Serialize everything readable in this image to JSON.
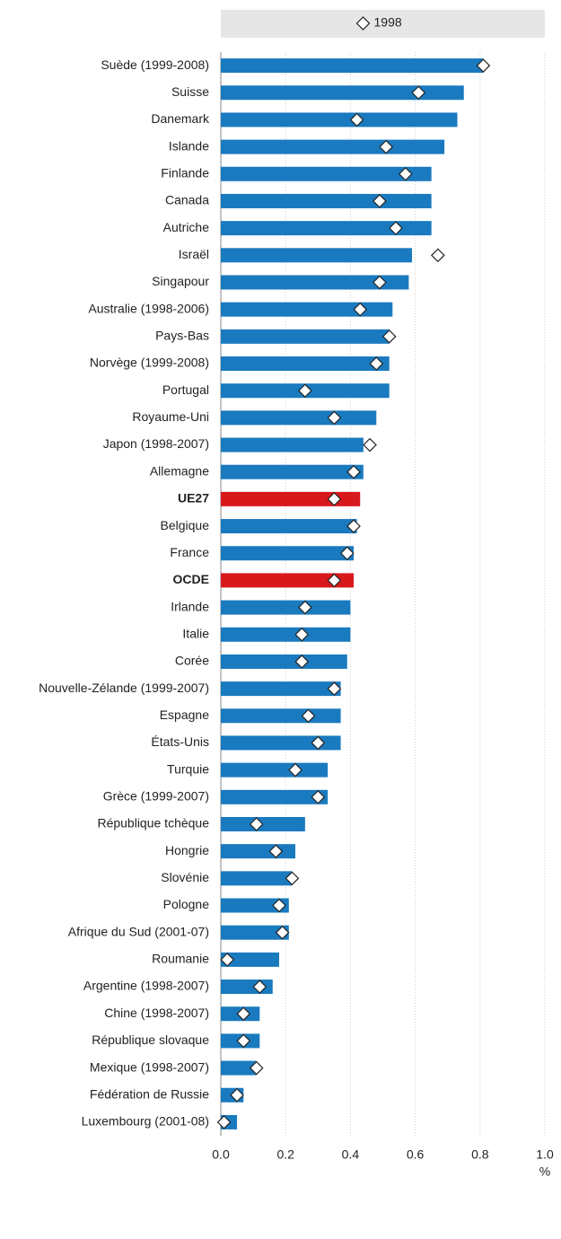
{
  "chart_data": {
    "type": "bar",
    "orientation": "horizontal",
    "categories": [
      "Suède (1999-2008)",
      "Suisse",
      "Danemark",
      "Islande",
      "Finlande",
      "Canada",
      "Autriche",
      "Israël",
      "Singapour",
      "Australie (1998-2006)",
      "Pays-Bas",
      "Norvège (1999-2008)",
      "Portugal",
      "Royaume-Uni",
      "Japon (1998-2007)",
      "Allemagne",
      "UE27",
      "Belgique",
      "France",
      "OCDE",
      "Irlande",
      "Italie",
      "Corée",
      "Nouvelle-Zélande (1999-2007)",
      "Espagne",
      "États-Unis",
      "Turquie",
      "Grèce (1999-2007)",
      "République tchèque",
      "Hongrie",
      "Slovénie",
      "Pologne",
      "Afrique du Sud (2001-07)",
      "Roumanie",
      "Argentine (1998-2007)",
      "Chine (1998-2007)",
      "République slovaque",
      "Mexique (1998-2007)",
      "Fédération de Russie",
      "Luxembourg (2001-08)"
    ],
    "series": [
      {
        "color": "#1a7abf",
        "values": [
          0.81,
          0.75,
          0.73,
          0.69,
          0.65,
          0.65,
          0.65,
          0.59,
          0.58,
          0.53,
          0.52,
          0.52,
          0.52,
          0.48,
          0.44,
          0.44,
          0.43,
          0.42,
          0.41,
          0.41,
          0.4,
          0.4,
          0.39,
          0.37,
          0.37,
          0.37,
          0.33,
          0.33,
          0.26,
          0.23,
          0.22,
          0.21,
          0.21,
          0.18,
          0.16,
          0.12,
          0.12,
          0.11,
          0.07,
          0.05
        ]
      },
      {
        "name": "1998",
        "marker": "diamond",
        "color": "#ffffff",
        "values": [
          0.81,
          0.61,
          0.42,
          0.51,
          0.57,
          0.49,
          0.54,
          0.67,
          0.49,
          0.43,
          0.52,
          0.48,
          0.26,
          0.35,
          0.46,
          0.41,
          0.35,
          0.41,
          0.39,
          0.35,
          0.26,
          0.25,
          0.25,
          0.35,
          0.27,
          0.3,
          0.23,
          0.3,
          0.11,
          0.17,
          0.22,
          0.18,
          0.19,
          0.02,
          0.12,
          0.07,
          0.07,
          0.11,
          0.05,
          0.01
        ]
      }
    ],
    "highlight": [
      16,
      19
    ],
    "highlight_color": "#d7191c",
    "xlim": [
      0,
      1
    ],
    "xticks": [
      {
        "value": 0,
        "label": "0.0"
      },
      0.2,
      0.4,
      0.6,
      0.8,
      {
        "value": 1,
        "label": "1.0"
      }
    ],
    "xlabel": "%",
    "grid": true,
    "legend": "top"
  }
}
